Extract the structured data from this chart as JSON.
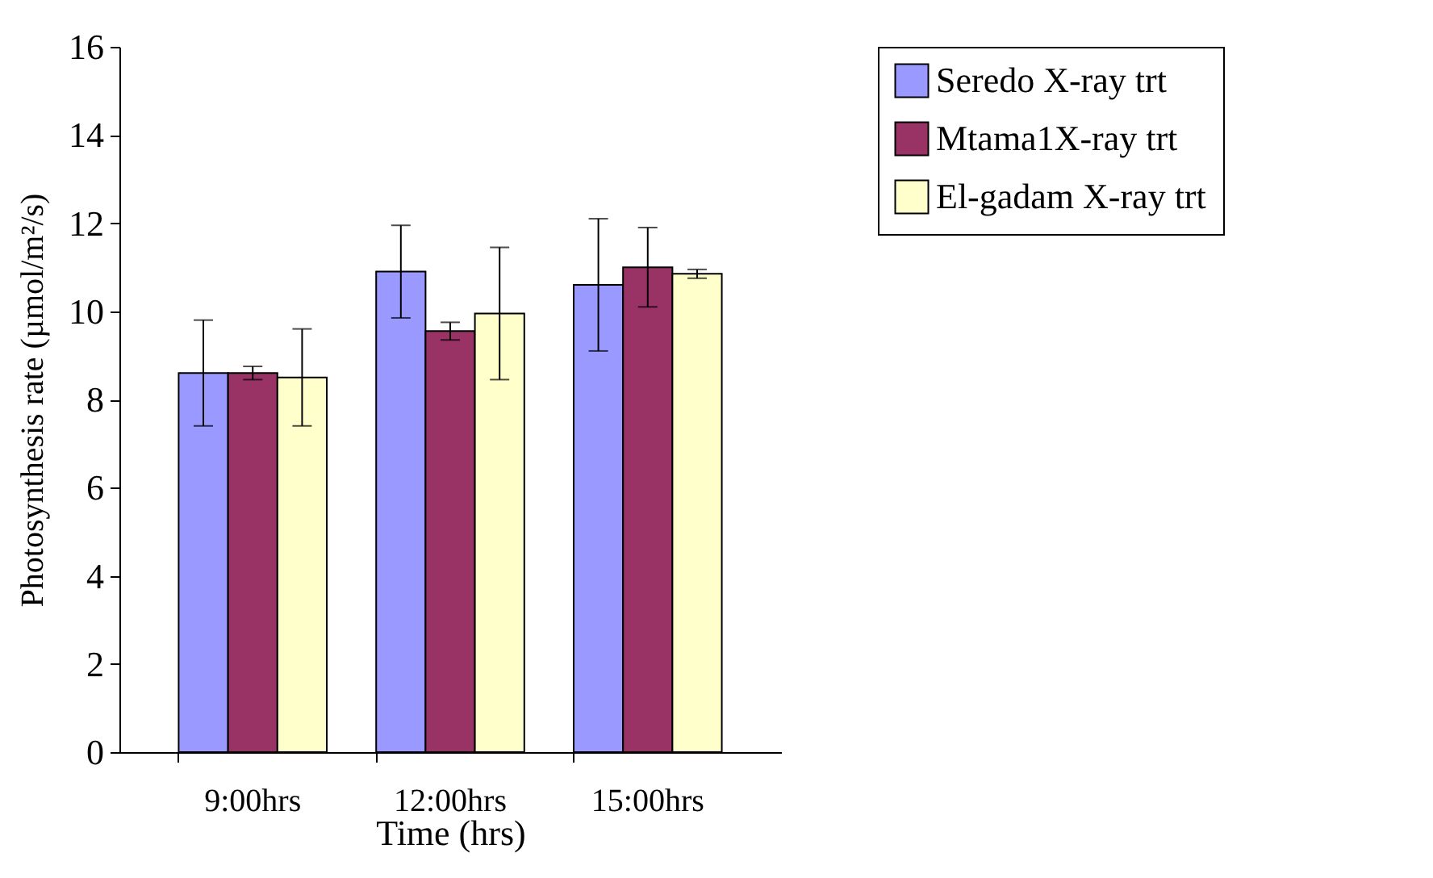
{
  "chart_data": {
    "type": "bar",
    "xlabel": "Time (hrs)",
    "ylabel": "Photosynthesis rate (µmol/m²/s)",
    "categories": [
      "9:00hrs",
      "12:00hrs",
      "15:00hrs"
    ],
    "series": [
      {
        "name": "Seredo X-ray trt",
        "color": "#9999ff",
        "values": [
          8.6,
          10.9,
          10.6
        ],
        "errors": [
          1.2,
          1.05,
          1.5
        ]
      },
      {
        "name": "Mtama1X-ray trt",
        "color": "#993366",
        "values": [
          8.6,
          9.55,
          11.0
        ],
        "errors": [
          0.15,
          0.2,
          0.9
        ]
      },
      {
        "name": "El-gadam X-ray trt",
        "color": "#ffffcc",
        "values": [
          8.5,
          9.95,
          10.85
        ],
        "errors": [
          1.1,
          1.5,
          0.1
        ]
      }
    ],
    "ylim": [
      0,
      16
    ],
    "yticks": [
      0,
      2,
      4,
      6,
      8,
      10,
      12,
      14,
      16
    ],
    "grid": false,
    "legend": "right"
  }
}
